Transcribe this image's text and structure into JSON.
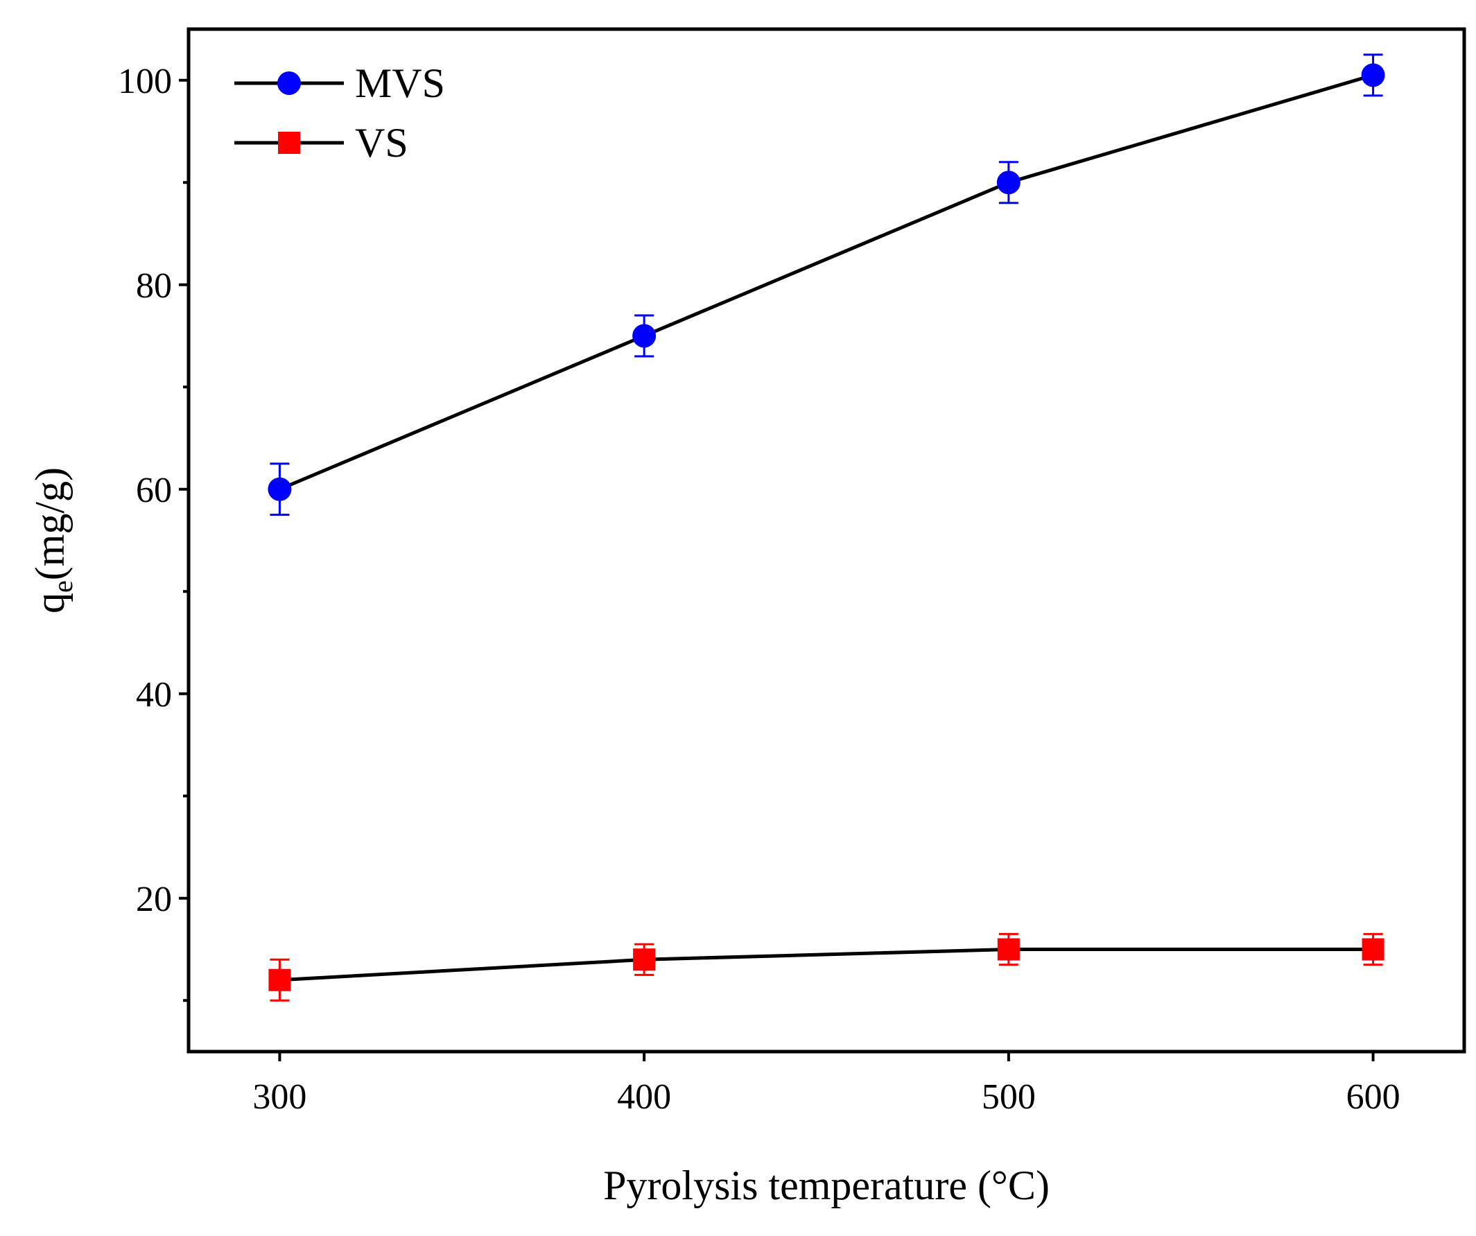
{
  "chart_data": {
    "type": "line",
    "title": "",
    "xlabel": "Pyrolysis temperature (°C)",
    "ylabel": "qe(mg/g)",
    "ylabel_main": "q",
    "ylabel_sub": "e",
    "ylabel_unit": "(mg/g)",
    "x": [
      300,
      400,
      500,
      600
    ],
    "xlim": [
      275,
      625
    ],
    "ylim": [
      5,
      105
    ],
    "xticks": [
      300,
      400,
      500,
      600
    ],
    "xtick_labels": [
      "300",
      "400",
      "500",
      "600"
    ],
    "yticks": [
      20,
      40,
      60,
      80,
      100
    ],
    "ytick_labels": [
      "20",
      "40",
      "60",
      "80",
      "100"
    ],
    "y_minor_ticks": [
      10,
      30,
      50,
      70,
      90
    ],
    "legend_position": "top-left",
    "grid": false,
    "series": [
      {
        "name": "MVS",
        "marker": "circle",
        "color": "#0000ff",
        "line_color": "#000000",
        "values": [
          60,
          75,
          90,
          100.5
        ],
        "errors": [
          2.5,
          2.0,
          2.0,
          2.0
        ]
      },
      {
        "name": "VS",
        "marker": "square",
        "color": "#ff0000",
        "line_color": "#000000",
        "values": [
          12,
          14,
          15,
          15
        ],
        "errors": [
          2.0,
          1.5,
          1.5,
          1.5
        ]
      }
    ]
  }
}
